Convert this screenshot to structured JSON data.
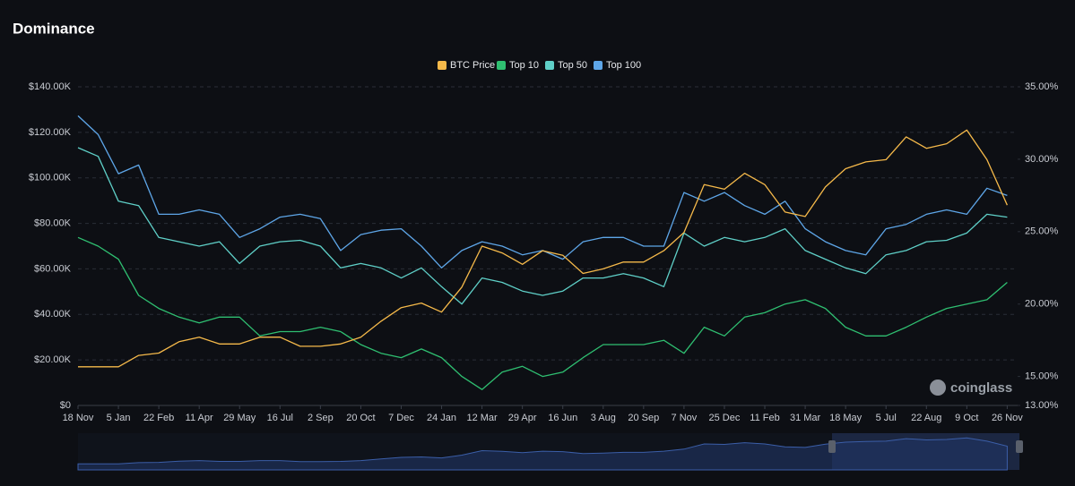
{
  "chart_data": {
    "type": "line",
    "title": "Dominance",
    "watermark": "coinglass",
    "categories": [
      "18 Nov",
      null,
      "5 Jan",
      null,
      "22 Feb",
      null,
      "11 Apr",
      null,
      "29 May",
      null,
      "16 Jul",
      null,
      "2 Sep",
      null,
      "20 Oct",
      null,
      "7 Dec",
      null,
      "24 Jan",
      null,
      "12 Mar",
      null,
      "29 Apr",
      null,
      "16 Jun",
      null,
      "3 Aug",
      null,
      "20 Sep",
      null,
      "7 Nov",
      null,
      "25 Dec",
      null,
      "11 Feb",
      null,
      "31 Mar",
      null,
      "18 May",
      null,
      "5 Jul",
      null,
      "22 Aug",
      null,
      "9 Oct",
      null,
      "26 Nov"
    ],
    "series": [
      {
        "name": "BTC Price",
        "color": "#f5b94a",
        "axis": "y",
        "values": [
          17000,
          17000,
          17000,
          22000,
          23000,
          28000,
          30000,
          27000,
          27000,
          30000,
          30000,
          26000,
          26000,
          27000,
          30000,
          37000,
          43000,
          45000,
          41000,
          52000,
          70000,
          67000,
          62000,
          68000,
          66000,
          58000,
          60000,
          63000,
          63000,
          68000,
          76000,
          97000,
          95000,
          102000,
          97000,
          85000,
          83000,
          96000,
          104000,
          107000,
          108000,
          118000,
          113000,
          115000,
          121000,
          108000,
          88000
        ]
      },
      {
        "name": "Top 10",
        "color": "#2fbf71",
        "axis": "y2",
        "values": [
          24.6,
          24.0,
          23.1,
          20.6,
          19.7,
          19.1,
          18.7,
          19.1,
          19.1,
          17.8,
          18.1,
          18.1,
          18.4,
          18.1,
          17.2,
          16.6,
          16.3,
          16.9,
          16.3,
          15.0,
          14.1,
          15.3,
          15.7,
          15.0,
          15.3,
          16.3,
          17.2,
          17.2,
          17.2,
          17.5,
          16.6,
          18.4,
          17.8,
          19.1,
          19.4,
          20.0,
          20.3,
          19.7,
          18.4,
          17.8,
          17.8,
          18.4,
          19.1,
          19.7,
          20.0,
          20.3,
          21.5
        ]
      },
      {
        "name": "Top 50",
        "color": "#5fd0c8",
        "axis": "y2",
        "values": [
          30.8,
          30.2,
          27.1,
          26.8,
          24.6,
          24.3,
          24.0,
          24.3,
          22.8,
          24.0,
          24.3,
          24.4,
          24.0,
          22.5,
          22.8,
          22.5,
          21.8,
          22.5,
          21.2,
          20.0,
          21.8,
          21.5,
          20.9,
          20.6,
          20.9,
          21.8,
          21.8,
          22.1,
          21.8,
          21.2,
          24.9,
          24.0,
          24.6,
          24.3,
          24.6,
          25.2,
          23.7,
          23.1,
          22.5,
          22.1,
          23.4,
          23.7,
          24.3,
          24.4,
          24.9,
          26.2,
          26.0
        ]
      },
      {
        "name": "Top 100",
        "color": "#5ea6e8",
        "axis": "y2",
        "values": [
          33.0,
          31.7,
          29.0,
          29.6,
          26.2,
          26.2,
          26.5,
          26.2,
          24.6,
          25.2,
          26.0,
          26.2,
          25.9,
          23.7,
          24.8,
          25.1,
          25.2,
          24.0,
          22.5,
          23.7,
          24.3,
          24.0,
          23.4,
          23.7,
          23.1,
          24.3,
          24.6,
          24.6,
          24.0,
          24.0,
          27.7,
          27.1,
          27.7,
          26.8,
          26.2,
          27.1,
          25.2,
          24.3,
          23.7,
          23.4,
          25.2,
          25.5,
          26.2,
          26.5,
          26.2,
          28.0,
          27.5
        ]
      }
    ],
    "ylim": [
      0,
      140000
    ],
    "yticks": [
      {
        "value": 0,
        "label": "$0"
      },
      {
        "value": 20000,
        "label": "$20.00K"
      },
      {
        "value": 40000,
        "label": "$40.00K"
      },
      {
        "value": 60000,
        "label": "$60.00K"
      },
      {
        "value": 80000,
        "label": "$80.00K"
      },
      {
        "value": 100000,
        "label": "$100.00K"
      },
      {
        "value": 120000,
        "label": "$120.00K"
      },
      {
        "value": 140000,
        "label": "$140.00K"
      }
    ],
    "y2lim": [
      13,
      35
    ],
    "y2ticks": [
      {
        "value": 13,
        "label": "13.00%"
      },
      {
        "value": 15,
        "label": "15.00%"
      },
      {
        "value": 20,
        "label": "20.00%"
      },
      {
        "value": 25,
        "label": "25.00%"
      },
      {
        "value": 30,
        "label": "30.00%"
      },
      {
        "value": 35,
        "label": "35.00%"
      }
    ],
    "grid": true,
    "legend": "top"
  }
}
